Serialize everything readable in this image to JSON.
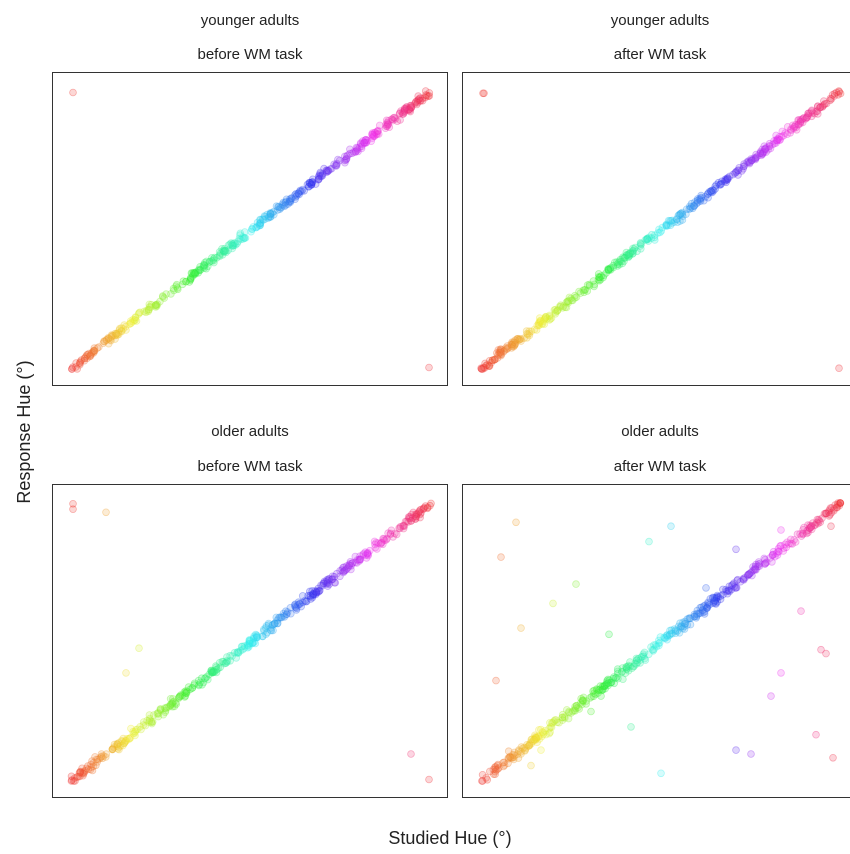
{
  "chart_data": {
    "type": "scatter",
    "xlabel": "Studied Hue (°)",
    "ylabel": "Response Hue (°)",
    "panels": [
      {
        "title_top": "younger adults",
        "title_bottom": "before WM task",
        "outliers": [
          [
            2,
            358
          ],
          [
            358,
            2
          ]
        ],
        "noise": 2.6
      },
      {
        "title_top": "younger adults",
        "title_bottom": "after WM task",
        "outliers": [
          [
            3,
            357
          ],
          [
            2,
            357
          ],
          [
            358,
            1
          ]
        ],
        "noise": 2.6
      },
      {
        "title_top": "older adults",
        "title_bottom": "before WM task",
        "outliers": [
          [
            2,
            359
          ],
          [
            2,
            352
          ],
          [
            35,
            348
          ],
          [
            55,
            140
          ],
          [
            68,
            172
          ],
          [
            340,
            35
          ],
          [
            358,
            2
          ]
        ],
        "noise": 3.0
      },
      {
        "title_top": "older adults",
        "title_bottom": "after WM task",
        "outliers": [
          [
            20,
            290
          ],
          [
            35,
            335
          ],
          [
            72,
            230
          ],
          [
            95,
            255
          ],
          [
            50,
            20
          ],
          [
            110,
            90
          ],
          [
            128,
            190
          ],
          [
            150,
            70
          ],
          [
            168,
            310
          ],
          [
            190,
            330
          ],
          [
            225,
            250
          ],
          [
            255,
            300
          ],
          [
            300,
            140
          ],
          [
            320,
            220
          ],
          [
            335,
            60
          ],
          [
            350,
            330
          ],
          [
            352,
            30
          ],
          [
            270,
            35
          ],
          [
            255,
            40
          ],
          [
            290,
            110
          ],
          [
            345,
            165
          ],
          [
            340,
            170
          ],
          [
            120,
            110
          ],
          [
            300,
            325
          ],
          [
            60,
            40
          ],
          [
            15,
            130
          ],
          [
            180,
            10
          ],
          [
            40,
            198
          ]
        ],
        "noise": 3.2
      }
    ],
    "xlim": [
      0,
      360
    ],
    "ylim": [
      0,
      360
    ],
    "grid": false
  }
}
